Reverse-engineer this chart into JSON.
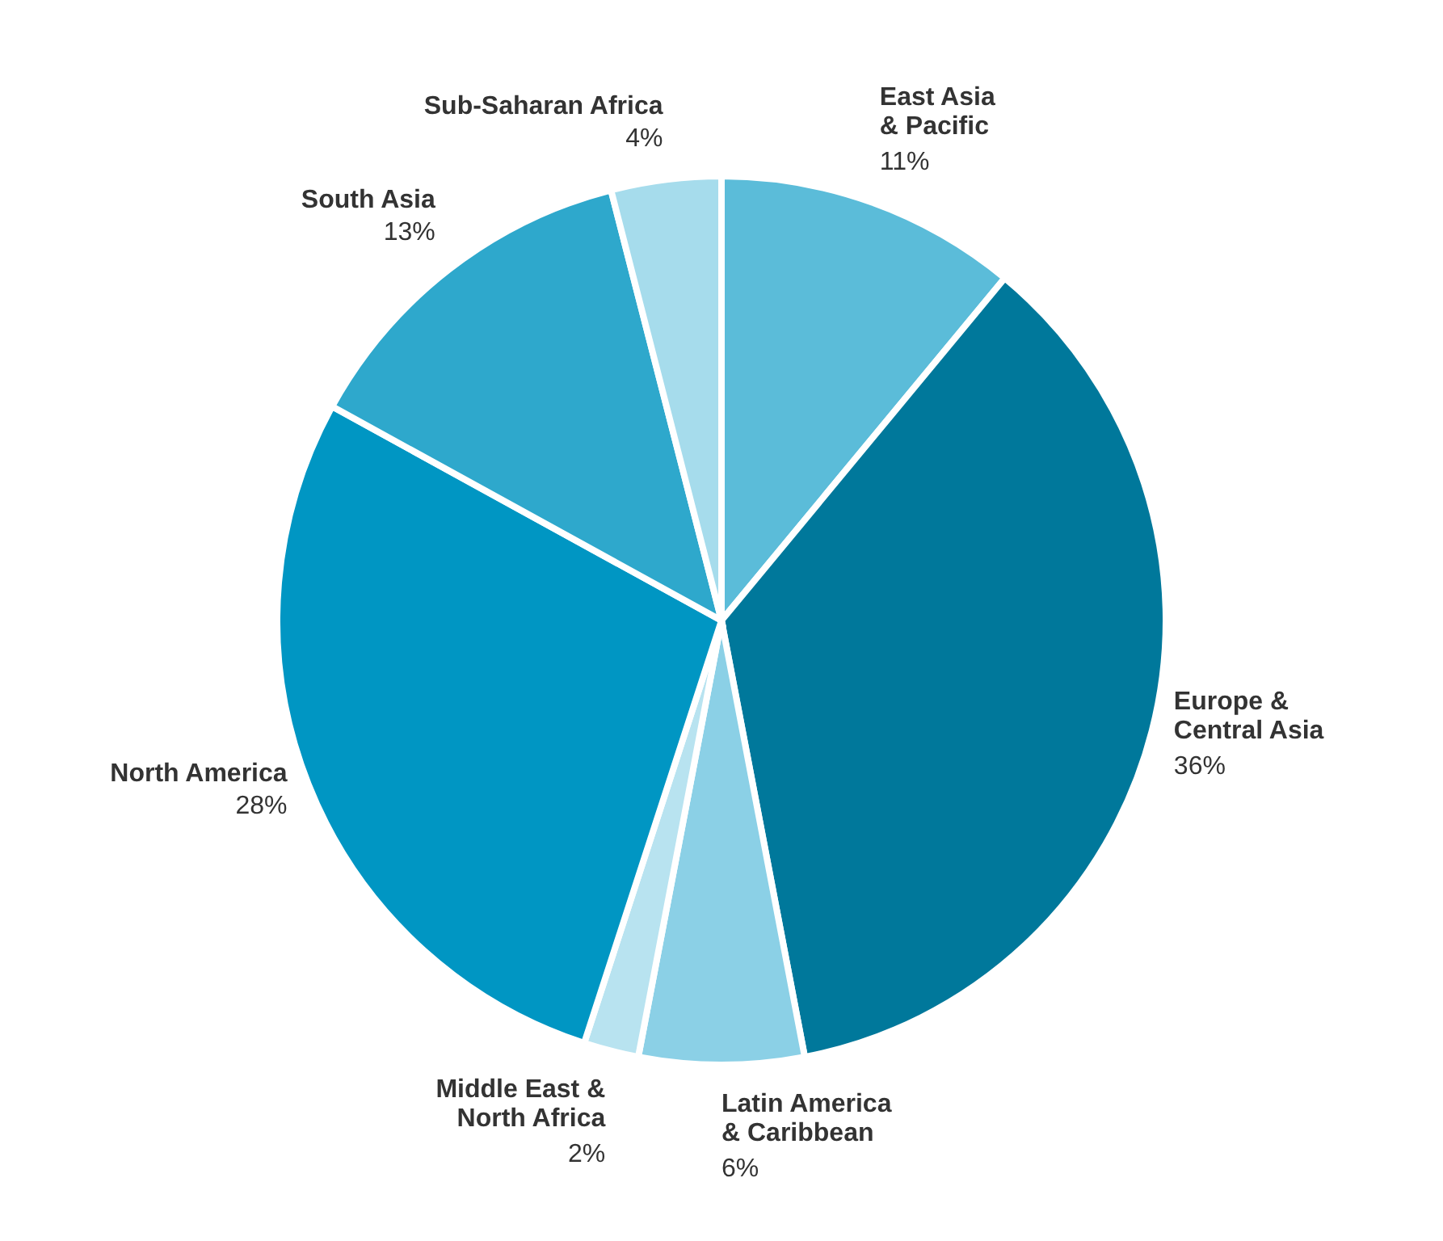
{
  "chart_data": {
    "type": "pie",
    "categories": [
      "East Asia & Pacific",
      "Europe & Central Asia",
      "Latin America & Caribbean",
      "Middle East & North Africa",
      "North America",
      "South Asia",
      "Sub-Saharan Africa"
    ],
    "values": [
      11,
      36,
      6,
      2,
      28,
      13,
      4
    ],
    "value_labels": [
      "11%",
      "36%",
      "6%",
      "2%",
      "28%",
      "13%",
      "4%"
    ],
    "colors": [
      "#5bbcd9",
      "#00789b",
      "#8bd0e6",
      "#b8e3f0",
      "#0096c3",
      "#2ea8cc",
      "#a6dcec"
    ]
  }
}
